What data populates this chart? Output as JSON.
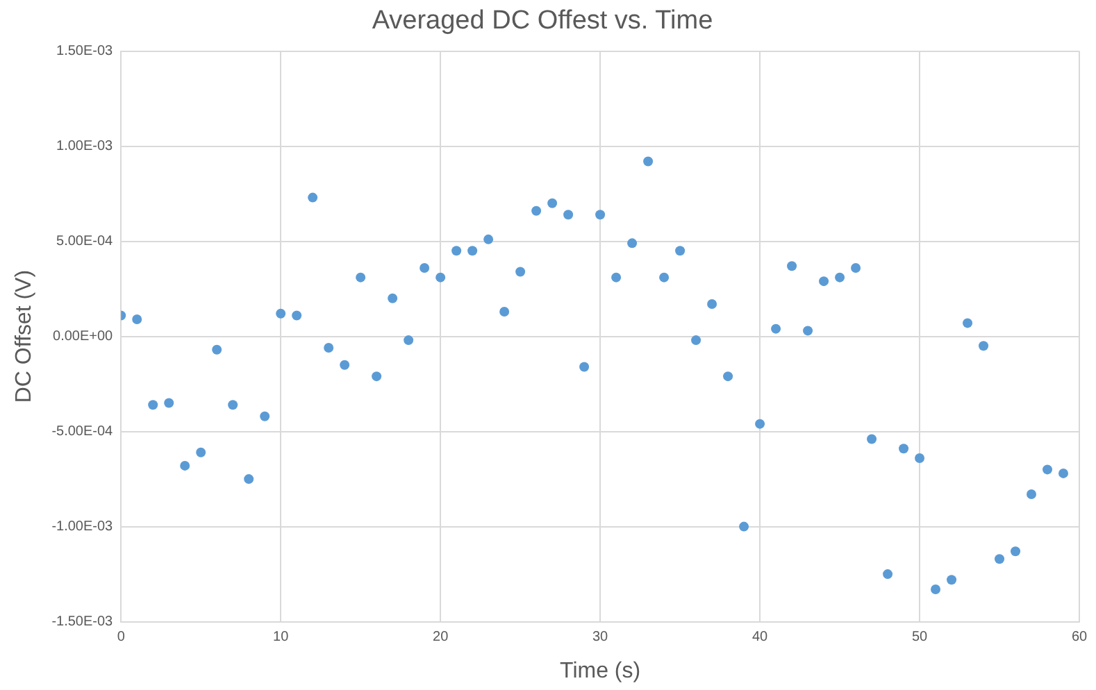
{
  "chart_data": {
    "type": "scatter",
    "title": "Averaged DC Offest vs. Time",
    "xlabel": "Time (s)",
    "ylabel": "DC Offset (V)",
    "x": [
      0,
      1,
      2,
      3,
      4,
      5,
      6,
      7,
      8,
      9,
      10,
      11,
      12,
      13,
      14,
      15,
      16,
      17,
      18,
      19,
      20,
      21,
      22,
      23,
      24,
      25,
      26,
      27,
      28,
      29,
      30,
      31,
      32,
      33,
      34,
      35,
      36,
      37,
      38,
      39,
      40,
      41,
      42,
      43,
      44,
      45,
      46,
      47,
      48,
      49,
      50,
      51,
      52,
      53,
      54,
      55,
      56,
      57,
      58,
      59
    ],
    "series": [
      {
        "color": "#5b9bd5",
        "values": [
          0.00011,
          9e-05,
          -0.00036,
          -0.00035,
          -0.00068,
          -0.00061,
          -7e-05,
          -0.00036,
          -0.00075,
          -0.00042,
          0.00012,
          0.00011,
          0.00073,
          -6e-05,
          -0.00015,
          0.00031,
          -0.00021,
          0.0002,
          -2e-05,
          0.00036,
          0.00031,
          0.00045,
          0.00045,
          0.00051,
          0.00013,
          0.00034,
          0.00066,
          0.0007,
          0.00064,
          -0.00016,
          0.00064,
          0.00031,
          0.00049,
          0.00092,
          0.00031,
          0.00045,
          -2e-05,
          0.00017,
          -0.00021,
          -0.001,
          -0.00046,
          4e-05,
          0.00037,
          3e-05,
          0.00029,
          0.00031,
          0.00036,
          -0.00054,
          -0.00125,
          -0.00059,
          -0.00064,
          -0.00133,
          -0.00128,
          7e-05,
          -5e-05,
          -0.00117,
          -0.00113,
          -0.00083,
          -0.0007,
          -0.00072
        ]
      }
    ],
    "xlim": [
      0,
      60
    ],
    "xticks": [
      0,
      10,
      20,
      30,
      40,
      50,
      60
    ],
    "ylim": [
      -0.0015,
      0.0015
    ],
    "yticks": [
      {
        "value": -0.0015,
        "label": "-1.50E-03"
      },
      {
        "value": -0.001,
        "label": "-1.00E-03"
      },
      {
        "value": -0.0005,
        "label": "-5.00E-04"
      },
      {
        "value": 0,
        "label": "0.00E+00"
      },
      {
        "value": 0.0005,
        "label": "5.00E-04"
      },
      {
        "value": 0.001,
        "label": "1.00E-03"
      },
      {
        "value": 0.0015,
        "label": "1.50E-03"
      }
    ],
    "grid": true,
    "marker": "circle",
    "legend": false
  }
}
